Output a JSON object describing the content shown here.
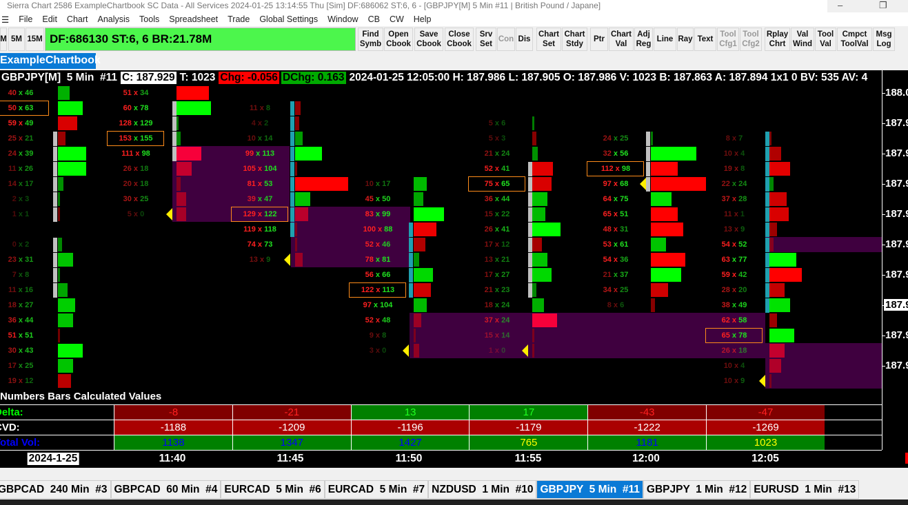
{
  "window": {
    "title": "Sierra Chart 2586 ExampleChartbook SC Data - All Services 2024-01-25  13:14:55 Thu [Sim]  DF:686062  ST:6, 6 - [GBPJPY[M]  5 Min  #11 | British Pound / Japane]"
  },
  "menu": [
    "File",
    "Edit",
    "Chart",
    "Analysis",
    "Tools",
    "Spreadsheet",
    "Trade",
    "Global Settings",
    "Window",
    "CB",
    "CW",
    "Help"
  ],
  "toolbar": {
    "left_buttons": [
      "M",
      "5M",
      "15M"
    ],
    "status": "DF:686130  ST:6, 6  BR:21.78M",
    "buttons": [
      {
        "l1": "Find",
        "l2": "Symb",
        "enabled": true
      },
      {
        "l1": "Open",
        "l2": "Cbook",
        "enabled": true
      },
      {
        "l1": "Save",
        "l2": "Cbook",
        "enabled": true
      },
      {
        "l1": "Close",
        "l2": "Cbook",
        "enabled": true
      },
      {
        "l1": "Srv",
        "l2": "Set",
        "enabled": true
      },
      {
        "l1": "Con",
        "l2": "",
        "enabled": false
      },
      {
        "l1": "Dis",
        "l2": "",
        "enabled": true
      },
      {
        "l1": "Chart",
        "l2": "Set",
        "enabled": true
      },
      {
        "l1": "Chart",
        "l2": "Stdy",
        "enabled": true
      },
      {
        "l1": "Ptr",
        "l2": "",
        "enabled": true
      },
      {
        "l1": "Chart",
        "l2": "Val",
        "enabled": true
      },
      {
        "l1": "Adj",
        "l2": "Reg",
        "enabled": true
      },
      {
        "l1": "Line",
        "l2": "",
        "enabled": true
      },
      {
        "l1": "Ray",
        "l2": "",
        "enabled": true
      },
      {
        "l1": "Text",
        "l2": "",
        "enabled": true
      },
      {
        "l1": "Tool",
        "l2": "Cfg1",
        "enabled": false
      },
      {
        "l1": "Tool",
        "l2": "Cfg2",
        "enabled": false
      },
      {
        "l1": "Rplay",
        "l2": "Chrt",
        "enabled": true
      },
      {
        "l1": "Val",
        "l2": "Wind",
        "enabled": true
      },
      {
        "l1": "Tool",
        "l2": "Val",
        "enabled": true
      },
      {
        "l1": "Cmpct",
        "l2": "ToolVal",
        "enabled": true
      },
      {
        "l1": "Msg",
        "l2": "Log",
        "enabled": true
      }
    ]
  },
  "chartbook_tab": "ExampleChartbook",
  "header": {
    "symbol": "GBPJPY[M]  5 Min  #11",
    "close": "C: 187.929",
    "trades": "T: 1023",
    "chg": "Chg: -0.056",
    "dchg": "DChg: 0.163",
    "rest": "2024-01-25 12:05:00 H: 187.986 L: 187.905 O: 187.986 V: 1023 B: 187.863 A: 187.894 1x1 0 BV: 535 AV: 4"
  },
  "colors": {
    "bid_text": "#ff2020",
    "ask_text": "#20e020",
    "buy_bar": "#00ff00",
    "sell_bar": "#ff0000",
    "imbalance_zone": "#3f003f",
    "poc_box": "#ff8c1a",
    "marker": "#ffee00",
    "delta_neg_bg": "#800000",
    "delta_pos_bg": "#008000",
    "cvd_bg": "#aa0000",
    "vol_bg": "#008000"
  },
  "price_axis": [
    {
      "label": "188.0"
    },
    {
      "label": "187.9"
    },
    {
      "label": "187.9"
    },
    {
      "label": "187.9"
    },
    {
      "label": "187.9"
    },
    {
      "label": "187.9"
    },
    {
      "label": "187.9"
    },
    {
      "label": "187.9",
      "current": true
    },
    {
      "label": "187.9"
    },
    {
      "label": "187.9"
    }
  ],
  "bars": [
    {
      "cells": [
        [
          0,
          40,
          46
        ],
        [
          1,
          50,
          63,
          "box"
        ],
        [
          2,
          59,
          49
        ],
        [
          3,
          25,
          21
        ],
        [
          4,
          24,
          39
        ],
        [
          5,
          11,
          26
        ],
        [
          6,
          14,
          17
        ],
        [
          7,
          2,
          3
        ],
        [
          8,
          1,
          1
        ],
        [
          10,
          0,
          2
        ],
        [
          11,
          23,
          31
        ],
        [
          12,
          7,
          8
        ],
        [
          13,
          11,
          16
        ],
        [
          14,
          18,
          27
        ],
        [
          15,
          36,
          44
        ],
        [
          16,
          51,
          51
        ],
        [
          17,
          30,
          43
        ],
        [
          18,
          17,
          25
        ],
        [
          19,
          19,
          12
        ]
      ]
    },
    {
      "time": "11:40",
      "cells": [
        [
          0,
          51,
          34
        ],
        [
          1,
          60,
          78
        ],
        [
          2,
          128,
          129
        ],
        [
          3,
          153,
          155,
          "box"
        ],
        [
          4,
          111,
          98
        ],
        [
          5,
          26,
          18
        ],
        [
          6,
          20,
          18
        ],
        [
          7,
          30,
          25
        ],
        [
          8,
          5,
          0,
          "marker"
        ]
      ]
    },
    {
      "time": "11:45",
      "cells": [
        [
          1,
          11,
          8
        ],
        [
          2,
          4,
          2
        ],
        [
          3,
          10,
          14
        ],
        [
          4,
          99,
          113
        ],
        [
          5,
          105,
          104
        ],
        [
          6,
          81,
          53
        ],
        [
          7,
          39,
          47
        ],
        [
          8,
          129,
          122,
          "box"
        ],
        [
          9,
          119,
          118
        ],
        [
          10,
          74,
          73
        ],
        [
          11,
          13,
          9,
          "marker"
        ]
      ]
    },
    {
      "time": "11:50",
      "cells": [
        [
          6,
          10,
          17
        ],
        [
          7,
          45,
          50
        ],
        [
          8,
          83,
          99
        ],
        [
          9,
          100,
          88
        ],
        [
          10,
          52,
          46
        ],
        [
          11,
          78,
          81
        ],
        [
          12,
          56,
          66
        ],
        [
          13,
          122,
          113,
          "box"
        ],
        [
          14,
          97,
          104
        ],
        [
          15,
          52,
          48
        ],
        [
          16,
          9,
          8
        ],
        [
          17,
          3,
          0,
          "marker"
        ]
      ]
    },
    {
      "time": "11:55",
      "cells": [
        [
          2,
          5,
          6
        ],
        [
          3,
          5,
          3
        ],
        [
          4,
          21,
          24
        ],
        [
          5,
          52,
          41
        ],
        [
          6,
          75,
          65,
          "box"
        ],
        [
          7,
          36,
          44
        ],
        [
          8,
          15,
          22
        ],
        [
          9,
          26,
          41
        ],
        [
          10,
          17,
          12
        ],
        [
          11,
          13,
          21
        ],
        [
          12,
          17,
          27
        ],
        [
          13,
          21,
          23
        ],
        [
          14,
          18,
          24
        ],
        [
          15,
          37,
          24
        ],
        [
          16,
          15,
          14
        ],
        [
          17,
          1,
          0,
          "marker"
        ]
      ]
    },
    {
      "time": "12:00",
      "cells": [
        [
          3,
          24,
          25
        ],
        [
          4,
          32,
          56
        ],
        [
          5,
          112,
          98,
          "box"
        ],
        [
          6,
          97,
          68,
          "marker"
        ],
        [
          7,
          64,
          75
        ],
        [
          8,
          65,
          51
        ],
        [
          9,
          48,
          31
        ],
        [
          10,
          53,
          61
        ],
        [
          11,
          54,
          36
        ],
        [
          12,
          21,
          37
        ],
        [
          13,
          34,
          25
        ],
        [
          14,
          8,
          6
        ]
      ]
    },
    {
      "time": "12:05",
      "cells": [
        [
          3,
          8,
          7
        ],
        [
          4,
          10,
          4
        ],
        [
          5,
          19,
          8
        ],
        [
          6,
          22,
          24
        ],
        [
          7,
          37,
          28
        ],
        [
          8,
          11,
          1
        ],
        [
          9,
          13,
          9
        ],
        [
          10,
          54,
          52
        ],
        [
          11,
          63,
          77
        ],
        [
          12,
          59,
          42
        ],
        [
          13,
          28,
          20
        ],
        [
          14,
          38,
          49
        ],
        [
          15,
          62,
          58
        ],
        [
          16,
          65,
          78,
          "box"
        ],
        [
          17,
          26,
          18
        ],
        [
          18,
          10,
          4
        ],
        [
          19,
          10,
          9,
          "marker"
        ]
      ]
    }
  ],
  "calc": {
    "title": "Numbers Bars Calculated Values",
    "rows": [
      {
        "label": "Delta:",
        "label_color": "#00ff00",
        "values": [
          "-8",
          "-21",
          "13",
          "17",
          "-43",
          "-47"
        ]
      },
      {
        "label": "CVD:",
        "label_color": "#ffffff",
        "values": [
          "-1188",
          "-1209",
          "-1196",
          "-1179",
          "-1222",
          "-1269"
        ]
      },
      {
        "label": "Total Vol:",
        "label_color": "#0000ff",
        "values": [
          "1138",
          "1347",
          "1427",
          "765",
          "1181",
          "1023"
        ]
      }
    ]
  },
  "time_axis": {
    "date": "2024-1-25",
    "times": [
      "11:40",
      "11:45",
      "11:50",
      "11:55",
      "12:00",
      "12:05"
    ]
  },
  "tabs": [
    {
      "label": "GBPCAD  240 Min  #3"
    },
    {
      "label": "GBPCAD  60 Min  #4"
    },
    {
      "label": "EURCAD  5 Min  #6"
    },
    {
      "label": "EURCAD  5 Min  #7"
    },
    {
      "label": "NZDUSD  1 Min  #10"
    },
    {
      "label": "GBPJPY  5 Min  #11",
      "active": true
    },
    {
      "label": "GBPJPY  1 Min  #12"
    },
    {
      "label": "EURUSD  1 Min  #13"
    }
  ]
}
